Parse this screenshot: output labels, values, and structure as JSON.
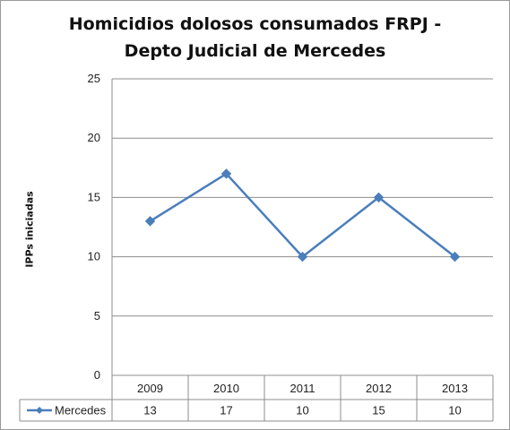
{
  "chart_data": {
    "type": "line",
    "title": "Homicidios dolosos consumados FRPJ -",
    "subtitle": "Depto Judicial de Mercedes",
    "xlabel": "",
    "ylabel": "IPPs iniciadas",
    "categories": [
      "2009",
      "2010",
      "2011",
      "2012",
      "2013"
    ],
    "series": [
      {
        "name": "Mercedes",
        "values": [
          13,
          17,
          10,
          15,
          10
        ],
        "color": "#4a7ebb"
      }
    ],
    "ylim": [
      0,
      25
    ],
    "yticks": [
      "0",
      "5",
      "10",
      "15",
      "20",
      "25"
    ],
    "grid": true,
    "legend": "data-table",
    "marker": "diamond"
  }
}
